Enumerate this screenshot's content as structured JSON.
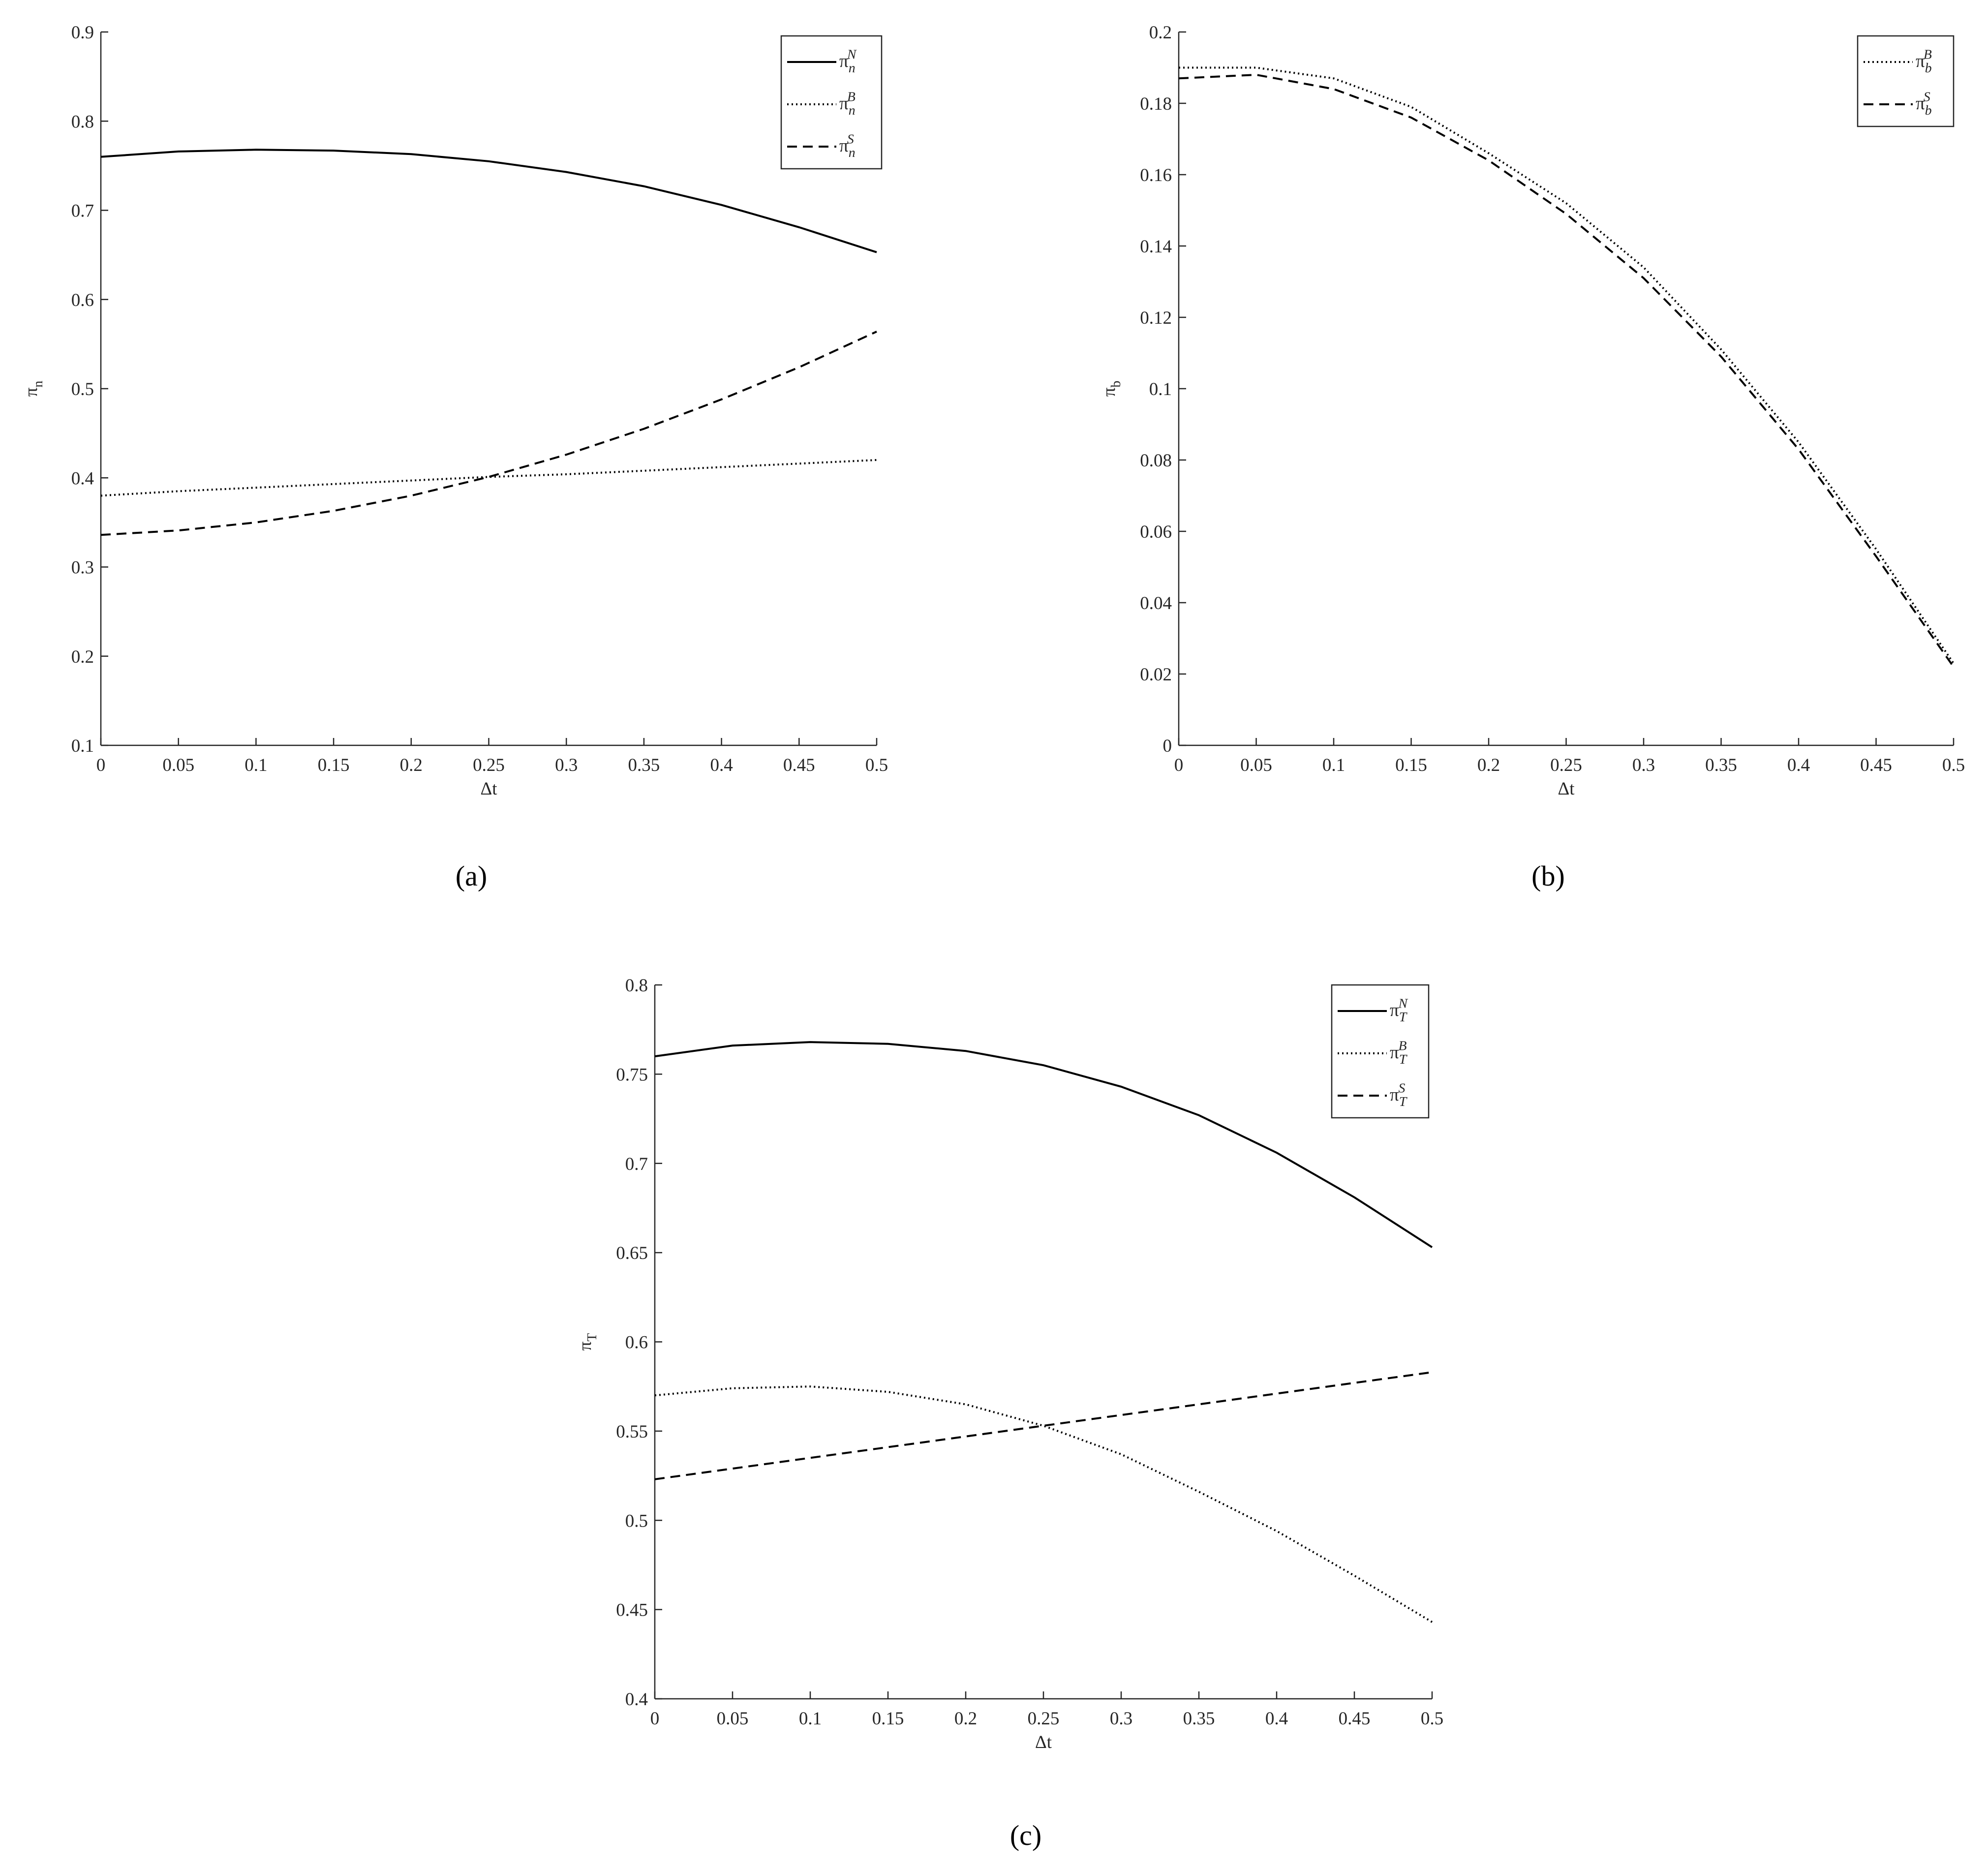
{
  "chart_data": [
    {
      "type": "line",
      "panel": "(a)",
      "xlabel": "Δt",
      "ylabel": "π_n",
      "x": [
        0,
        0.05,
        0.1,
        0.15,
        0.2,
        0.25,
        0.3,
        0.35,
        0.4,
        0.45,
        0.5
      ],
      "xlim": [
        0,
        0.5
      ],
      "xticks": [
        0,
        0.05,
        0.1,
        0.15,
        0.2,
        0.25,
        0.3,
        0.35,
        0.4,
        0.45,
        0.5
      ],
      "ylim": [
        0.1,
        0.9
      ],
      "yticks": [
        0.1,
        0.2,
        0.3,
        0.4,
        0.5,
        0.6,
        0.7,
        0.8,
        0.9
      ],
      "grid": false,
      "legend": "upper right",
      "series": [
        {
          "name": "π_n^N",
          "color": "#000000",
          "style": "solid",
          "values": [
            0.76,
            0.766,
            0.768,
            0.767,
            0.763,
            0.755,
            0.743,
            0.727,
            0.706,
            0.681,
            0.653
          ]
        },
        {
          "name": "π_n^B",
          "color": "#000000",
          "style": "dotted",
          "values": [
            0.38,
            0.385,
            0.389,
            0.393,
            0.397,
            0.401,
            0.404,
            0.408,
            0.412,
            0.416,
            0.42
          ]
        },
        {
          "name": "π_n^S",
          "color": "#000000",
          "style": "dashed",
          "values": [
            0.336,
            0.341,
            0.35,
            0.363,
            0.38,
            0.401,
            0.426,
            0.455,
            0.488,
            0.524,
            0.564
          ]
        }
      ]
    },
    {
      "type": "line",
      "panel": "(b)",
      "xlabel": "Δt",
      "ylabel": "π_b",
      "x": [
        0,
        0.05,
        0.1,
        0.15,
        0.2,
        0.25,
        0.3,
        0.35,
        0.4,
        0.45,
        0.5
      ],
      "xlim": [
        0,
        0.5
      ],
      "xticks": [
        0,
        0.05,
        0.1,
        0.15,
        0.2,
        0.25,
        0.3,
        0.35,
        0.4,
        0.45,
        0.5
      ],
      "ylim": [
        0,
        0.2
      ],
      "yticks": [
        0,
        0.02,
        0.04,
        0.06,
        0.08,
        0.1,
        0.12,
        0.14,
        0.16,
        0.18,
        0.2
      ],
      "grid": false,
      "legend": "upper right",
      "series": [
        {
          "name": "π_b^B",
          "color": "#000000",
          "style": "dotted",
          "values": [
            0.19,
            0.19,
            0.187,
            0.179,
            0.166,
            0.152,
            0.134,
            0.111,
            0.085,
            0.055,
            0.023
          ]
        },
        {
          "name": "π_b^S",
          "color": "#000000",
          "style": "dashed",
          "values": [
            0.187,
            0.188,
            0.184,
            0.176,
            0.164,
            0.149,
            0.131,
            0.109,
            0.083,
            0.053,
            0.022
          ]
        }
      ]
    },
    {
      "type": "line",
      "panel": "(c)",
      "xlabel": "Δt",
      "ylabel": "π_T",
      "x": [
        0,
        0.05,
        0.1,
        0.15,
        0.2,
        0.25,
        0.3,
        0.35,
        0.4,
        0.45,
        0.5
      ],
      "xlim": [
        0,
        0.5
      ],
      "xticks": [
        0,
        0.05,
        0.1,
        0.15,
        0.2,
        0.25,
        0.3,
        0.35,
        0.4,
        0.45,
        0.5
      ],
      "ylim": [
        0.4,
        0.8
      ],
      "yticks": [
        0.4,
        0.45,
        0.5,
        0.55,
        0.6,
        0.65,
        0.7,
        0.75,
        0.8
      ],
      "grid": false,
      "legend": "upper right",
      "series": [
        {
          "name": "π_T^N",
          "color": "#000000",
          "style": "solid",
          "values": [
            0.76,
            0.766,
            0.768,
            0.767,
            0.763,
            0.755,
            0.743,
            0.727,
            0.706,
            0.681,
            0.653
          ]
        },
        {
          "name": "π_T^B",
          "color": "#000000",
          "style": "dotted",
          "values": [
            0.57,
            0.574,
            0.575,
            0.572,
            0.565,
            0.553,
            0.537,
            0.516,
            0.494,
            0.469,
            0.443
          ]
        },
        {
          "name": "π_T^S",
          "color": "#000000",
          "style": "dashed",
          "values": [
            0.523,
            0.529,
            0.535,
            0.541,
            0.547,
            0.553,
            0.559,
            0.565,
            0.571,
            0.577,
            0.583
          ]
        }
      ]
    }
  ]
}
